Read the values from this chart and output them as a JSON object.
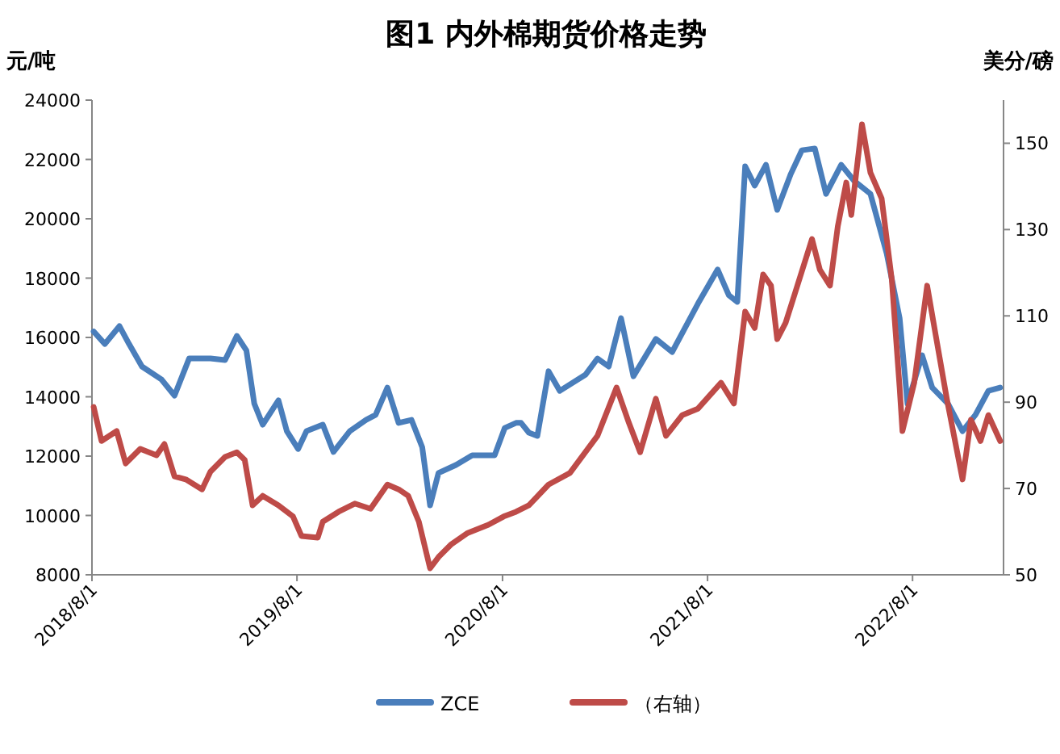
{
  "chart_data": {
    "type": "line",
    "title": "图1  内外棉期货价格走势",
    "ylabel": "元/吨",
    "y2label": "美分/磅",
    "xlim": [
      "2018-08-01",
      "2023-01-10"
    ],
    "xticks": [
      {
        "value": "2018-08-01",
        "label": "2018/8/1"
      },
      {
        "value": "2019-08-01",
        "label": "2019/8/1"
      },
      {
        "value": "2020-08-01",
        "label": "2020/8/1"
      },
      {
        "value": "2021-08-01",
        "label": "2021/8/1"
      },
      {
        "value": "2022-08-01",
        "label": "2022/8/1"
      }
    ],
    "ylim": [
      8000,
      24000
    ],
    "yticks": [
      8000,
      10000,
      12000,
      14000,
      16000,
      18000,
      20000,
      22000,
      24000
    ],
    "y2lim": [
      50,
      160
    ],
    "y2ticks": [
      50,
      70,
      90,
      110,
      130,
      150
    ],
    "grid": false,
    "legend": "bottom",
    "marker": "none",
    "line_style": "solid",
    "series": [
      {
        "name": "ZCE",
        "color": "#4a7ebb",
        "x": [
          "2018-08-04",
          "2018-08-24",
          "2018-09-19",
          "2018-10-06",
          "2018-10-29",
          "2018-12-03",
          "2018-12-26",
          "2019-01-21",
          "2019-02-28",
          "2019-03-26",
          "2019-04-16",
          "2019-05-03",
          "2019-05-17",
          "2019-06-01",
          "2019-06-29",
          "2019-07-14",
          "2019-08-03",
          "2019-08-18",
          "2019-09-16",
          "2019-10-05",
          "2019-11-03",
          "2019-12-02",
          "2019-12-19",
          "2020-01-09",
          "2020-01-29",
          "2020-02-21",
          "2020-03-11",
          "2020-03-25",
          "2020-04-09",
          "2020-05-10",
          "2020-06-08",
          "2020-07-18",
          "2020-08-05",
          "2020-08-25",
          "2020-09-03",
          "2020-09-17",
          "2020-10-02",
          "2020-10-22",
          "2020-11-11",
          "2020-12-27",
          "2021-01-17",
          "2021-02-06",
          "2021-02-28",
          "2021-03-22",
          "2021-05-01",
          "2021-05-30",
          "2021-07-15",
          "2021-08-19",
          "2021-09-08",
          "2021-09-23",
          "2021-10-07",
          "2021-10-24",
          "2021-11-13",
          "2021-12-03",
          "2021-12-27",
          "2022-01-16",
          "2022-02-08",
          "2022-02-28",
          "2022-03-27",
          "2022-04-19",
          "2022-05-18",
          "2022-06-16",
          "2022-07-09",
          "2022-07-23",
          "2022-08-18",
          "2022-09-05",
          "2022-10-03",
          "2022-10-29",
          "2022-11-21",
          "2022-12-14",
          "2023-01-04"
        ],
        "values": [
          16200,
          15780,
          16380,
          15780,
          15020,
          14580,
          14040,
          15290,
          15290,
          15240,
          16050,
          15560,
          13770,
          13060,
          13880,
          12840,
          12240,
          12840,
          13060,
          12140,
          12840,
          13220,
          13390,
          14310,
          13120,
          13220,
          12300,
          10340,
          11430,
          11700,
          12030,
          12030,
          12950,
          13120,
          13120,
          12790,
          12680,
          14860,
          14200,
          14750,
          15290,
          15020,
          16650,
          14690,
          15950,
          15510,
          17140,
          18290,
          17420,
          17200,
          21770,
          21120,
          21820,
          20300,
          21500,
          22310,
          22370,
          20840,
          21820,
          21280,
          20840,
          18830,
          16650,
          13770,
          15400,
          14310,
          13770,
          12840,
          13390,
          14200,
          14310
        ]
      },
      {
        "name": "（右轴）",
        "color": "#be4b48",
        "axis": "y2",
        "x": [
          "2018-08-04",
          "2018-08-18",
          "2018-09-14",
          "2018-09-30",
          "2018-10-26",
          "2018-11-24",
          "2018-12-08",
          "2018-12-26",
          "2019-01-15",
          "2019-02-13",
          "2019-02-28",
          "2019-03-26",
          "2019-04-16",
          "2019-04-30",
          "2019-05-14",
          "2019-06-01",
          "2019-06-29",
          "2019-07-25",
          "2019-08-09",
          "2019-09-07",
          "2019-09-16",
          "2019-10-14",
          "2019-11-12",
          "2019-12-10",
          "2020-01-09",
          "2020-01-29",
          "2020-02-15",
          "2020-03-05",
          "2020-03-25",
          "2020-04-09",
          "2020-05-02",
          "2020-05-31",
          "2020-07-07",
          "2020-08-03",
          "2020-08-25",
          "2020-09-17",
          "2020-10-22",
          "2020-11-29",
          "2021-01-17",
          "2021-02-20",
          "2021-03-14",
          "2021-04-03",
          "2021-05-01",
          "2021-05-19",
          "2021-06-17",
          "2021-07-15",
          "2021-08-25",
          "2021-09-17",
          "2021-10-07",
          "2021-10-24",
          "2021-11-08",
          "2021-11-22",
          "2021-12-03",
          "2021-12-18",
          "2022-01-05",
          "2022-02-03",
          "2022-02-17",
          "2022-03-07",
          "2022-03-21",
          "2022-04-05",
          "2022-04-14",
          "2022-05-03",
          "2022-05-18",
          "2022-06-07",
          "2022-06-25",
          "2022-07-09",
          "2022-07-14",
          "2022-08-04",
          "2022-08-27",
          "2022-09-11",
          "2022-10-01",
          "2022-10-29",
          "2022-11-13",
          "2022-11-30",
          "2022-12-14",
          "2023-01-04"
        ],
        "values": [
          88.9,
          81.0,
          83.3,
          75.8,
          79.2,
          77.7,
          80.3,
          72.8,
          72.1,
          69.8,
          73.9,
          77.3,
          78.4,
          76.6,
          66.1,
          68.3,
          66.1,
          63.5,
          59.0,
          58.6,
          62.3,
          64.6,
          66.5,
          65.3,
          70.9,
          69.8,
          68.3,
          62.3,
          51.5,
          54.1,
          57.1,
          59.7,
          61.6,
          63.5,
          64.6,
          66.1,
          70.9,
          73.6,
          82.2,
          93.4,
          85.2,
          78.4,
          90.8,
          82.2,
          87.0,
          88.5,
          94.5,
          89.7,
          111.0,
          107.2,
          119.6,
          117.0,
          104.6,
          108.4,
          115.8,
          127.8,
          120.7,
          117.0,
          130.8,
          140.9,
          133.4,
          154.4,
          143.2,
          137.2,
          118.5,
          93.4,
          83.3,
          94.5,
          117.0,
          105.7,
          90.8,
          72.1,
          85.9,
          81.0,
          87.0,
          81.0
        ]
      }
    ]
  }
}
